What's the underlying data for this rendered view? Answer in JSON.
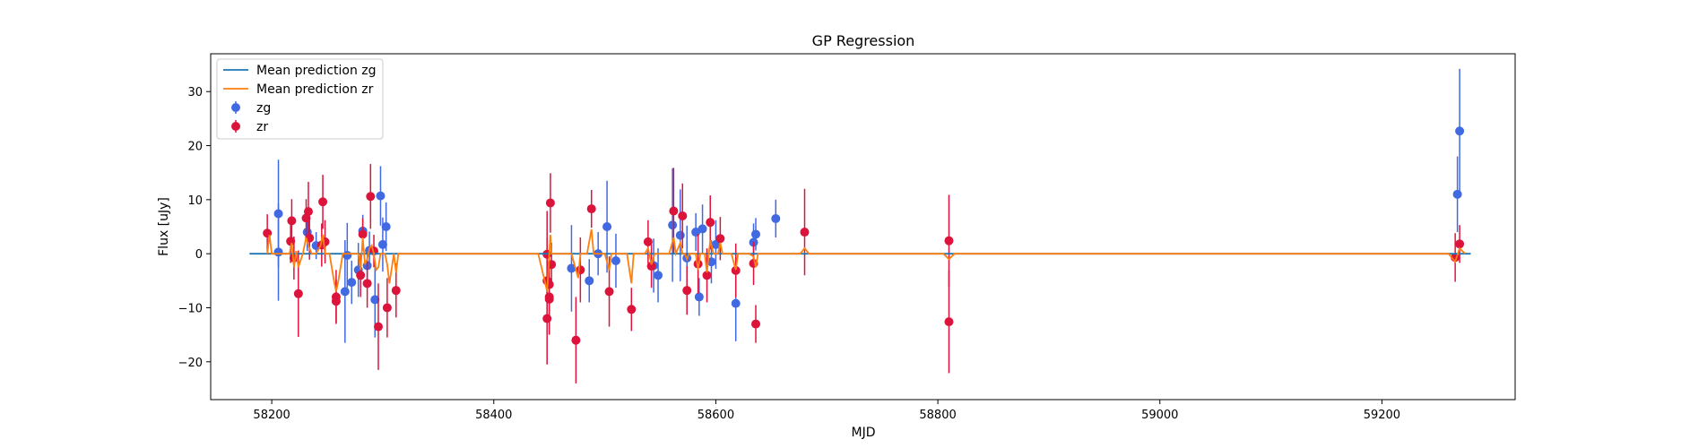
{
  "chart_data": {
    "type": "scatter",
    "title": "GP Regression",
    "xlabel": "MJD",
    "ylabel": "Flux [uJy]",
    "xlim": [
      58145,
      59320
    ],
    "ylim": [
      -27,
      37
    ],
    "xticks": [
      58200,
      58400,
      58600,
      58800,
      59000,
      59200
    ],
    "yticks": [
      -20,
      -10,
      0,
      10,
      20,
      30
    ],
    "xtick_labels": [
      "58200",
      "58400",
      "58600",
      "58800",
      "59000",
      "59200"
    ],
    "ytick_labels": [
      "−20",
      "−10",
      "0",
      "10",
      "20",
      "30"
    ],
    "grid": false,
    "legend_position": "top-left",
    "legend": [
      {
        "label": "Mean prediction zg",
        "kind": "line",
        "color": "#1f77b4"
      },
      {
        "label": "Mean prediction zr",
        "kind": "line",
        "color": "#ff7f0e"
      },
      {
        "label": "zg",
        "kind": "errorbar",
        "color": "#4169e1"
      },
      {
        "label": "zr",
        "kind": "errorbar",
        "color": "#dc143c"
      }
    ],
    "series": [
      {
        "name": "zg",
        "kind": "errorbar",
        "color": "#4169e1",
        "points": [
          [
            58206,
            7.4,
            10.0
          ],
          [
            58206,
            0.3,
            9.0
          ],
          [
            58232,
            4.0,
            3.5
          ],
          [
            58240,
            1.5,
            2.5
          ],
          [
            58266,
            -7.0,
            9.5
          ],
          [
            58268,
            -0.3,
            6.0
          ],
          [
            58272,
            -5.3,
            4.0
          ],
          [
            58278,
            -3.0,
            5.0
          ],
          [
            58282,
            4.2,
            3.0
          ],
          [
            58286,
            -2.2,
            3.5
          ],
          [
            58288,
            0.6,
            3.5
          ],
          [
            58293,
            -8.5,
            7.0
          ],
          [
            58298,
            10.7,
            5.5
          ],
          [
            58300,
            1.7,
            5.0
          ],
          [
            58303,
            5.0,
            4.5
          ],
          [
            58470,
            -2.7,
            8.0
          ],
          [
            58486,
            -5.0,
            4.0
          ],
          [
            58494,
            0.0,
            4.0
          ],
          [
            58502,
            5.0,
            8.5
          ],
          [
            58510,
            -1.3,
            5.0
          ],
          [
            58544,
            -2.2,
            5.0
          ],
          [
            58548,
            -4.0,
            5.0
          ],
          [
            58561,
            5.3,
            10.5
          ],
          [
            58568,
            3.4,
            8.5
          ],
          [
            58574,
            -0.8,
            6.0
          ],
          [
            58582,
            4.0,
            3.5
          ],
          [
            58585,
            -8.0,
            3.5
          ],
          [
            58588,
            4.6,
            4.5
          ],
          [
            58596,
            -1.5,
            4.0
          ],
          [
            58600,
            1.7,
            4.5
          ],
          [
            58618,
            -9.2,
            7.0
          ],
          [
            58634,
            2.1,
            3.5
          ],
          [
            58636,
            3.6,
            3.0
          ],
          [
            58654,
            6.5,
            3.5
          ],
          [
            59268,
            11.0,
            7.0
          ],
          [
            59270,
            22.7,
            11.5
          ]
        ]
      },
      {
        "name": "zr",
        "kind": "errorbar",
        "color": "#dc143c",
        "points": [
          [
            58196,
            3.8,
            3.5
          ],
          [
            58217,
            2.3,
            4.0
          ],
          [
            58218,
            6.1,
            4.0
          ],
          [
            58220,
            -0.8,
            4.0
          ],
          [
            58224,
            -7.4,
            8.0
          ],
          [
            58231,
            6.6,
            3.5
          ],
          [
            58233,
            7.8,
            5.5
          ],
          [
            58234,
            2.9,
            4.0
          ],
          [
            58245,
            1.6,
            4.0
          ],
          [
            58246,
            9.6,
            5.0
          ],
          [
            58248,
            2.2,
            4.0
          ],
          [
            58258,
            -8.0,
            5.0
          ],
          [
            58258,
            -8.8,
            4.0
          ],
          [
            58280,
            -4.0,
            4.0
          ],
          [
            58282,
            3.6,
            3.0
          ],
          [
            58286,
            -5.5,
            4.5
          ],
          [
            58289,
            10.6,
            6.0
          ],
          [
            58292,
            0.5,
            3.0
          ],
          [
            58296,
            -13.5,
            8.0
          ],
          [
            58304,
            -10.0,
            5.5
          ],
          [
            58312,
            -6.8,
            5.0
          ],
          [
            58448,
            -12.0,
            8.5
          ],
          [
            58448,
            -5.0,
            8.0
          ],
          [
            58448,
            -0.1,
            8.0
          ],
          [
            58450,
            -8.0,
            7.0
          ],
          [
            58450,
            -5.7,
            5.5
          ],
          [
            58450,
            -8.4,
            6.5
          ],
          [
            58451,
            9.4,
            5.5
          ],
          [
            58452,
            -2.0,
            4.0
          ],
          [
            58474,
            -16.0,
            8.0
          ],
          [
            58478,
            -3.0,
            6.0
          ],
          [
            58488,
            8.3,
            3.5
          ],
          [
            58504,
            -7.0,
            6.5
          ],
          [
            58524,
            -10.3,
            4.0
          ],
          [
            58539,
            2.2,
            4.0
          ],
          [
            58542,
            -2.3,
            4.0
          ],
          [
            58562,
            7.9,
            8.0
          ],
          [
            58570,
            7.0,
            6.0
          ],
          [
            58574,
            -6.8,
            4.5
          ],
          [
            58584,
            -1.9,
            5.5
          ],
          [
            58592,
            -4.0,
            5.0
          ],
          [
            58595,
            5.8,
            5.0
          ],
          [
            58604,
            2.8,
            4.0
          ],
          [
            58618,
            -3.1,
            5.0
          ],
          [
            58634,
            -1.8,
            4.0
          ],
          [
            58636,
            -13.0,
            3.5
          ],
          [
            58680,
            4.0,
            8.0
          ],
          [
            58810,
            2.4,
            8.5
          ],
          [
            58810,
            -12.6,
            9.5
          ],
          [
            59266,
            -0.7,
            4.5
          ],
          [
            59270,
            1.8,
            3.5
          ]
        ]
      },
      {
        "name": "Mean prediction zg",
        "kind": "line",
        "color": "#1f77b4",
        "x": [
          58180,
          59280
        ],
        "y": [
          0.0,
          0.0
        ]
      },
      {
        "name": "Mean prediction zr",
        "kind": "line",
        "color": "#ff7f0e",
        "x": [
          58196,
          58198,
          58200,
          58216,
          58218,
          58220,
          58222,
          58224,
          58228,
          58231,
          58233,
          58236,
          58240,
          58244,
          58246,
          58248,
          58252,
          58256,
          58258,
          58260,
          58264,
          58278,
          58280,
          58282,
          58284,
          58286,
          58288,
          58290,
          58292,
          58294,
          58296,
          58298,
          58302,
          58304,
          58306,
          58310,
          58312,
          58314,
          58320,
          58440,
          58447,
          58448,
          58449,
          58450,
          58451,
          58452,
          58454,
          58470,
          58474,
          58476,
          58478,
          58480,
          58484,
          58488,
          58490,
          58500,
          58504,
          58506,
          58520,
          58524,
          58526,
          58536,
          58539,
          58542,
          58545,
          58558,
          58562,
          58564,
          58568,
          58570,
          58572,
          58574,
          58576,
          58582,
          58584,
          58586,
          58590,
          58592,
          58595,
          58598,
          58602,
          58604,
          58606,
          58614,
          58618,
          58620,
          58630,
          58634,
          58636,
          58638,
          58676,
          58680,
          58684,
          58805,
          58810,
          58815,
          59260,
          59266,
          59270,
          59275
        ],
        "y": [
          0.0,
          3.5,
          0.0,
          0.0,
          2.0,
          -2.5,
          0.5,
          -2.5,
          0.0,
          3.0,
          1.5,
          0.0,
          0.0,
          1.5,
          3.5,
          0.0,
          0.0,
          -5.0,
          -7.0,
          -5.0,
          0.0,
          0.0,
          -3.0,
          3.0,
          -2.0,
          -1.0,
          1.0,
          1.5,
          0.0,
          -3.0,
          -2.5,
          0.0,
          0.0,
          -2.0,
          -5.5,
          0.0,
          -3.5,
          0.0,
          0.0,
          0.0,
          -6.0,
          -7.0,
          -4.0,
          0.0,
          3.5,
          0.0,
          0.0,
          0.0,
          -3.0,
          -4.5,
          0.0,
          0.0,
          0.0,
          4.5,
          0.0,
          0.0,
          -3.0,
          0.0,
          0.0,
          -5.5,
          0.0,
          0.0,
          1.0,
          -2.0,
          0.0,
          0.0,
          3.0,
          0.0,
          2.0,
          0.0,
          0.0,
          -1.0,
          0.0,
          0.0,
          -3.0,
          0.0,
          0.0,
          -3.5,
          2.5,
          0.0,
          0.0,
          2.0,
          0.0,
          0.0,
          -3.0,
          0.0,
          0.0,
          -0.5,
          -2.5,
          0.0,
          0.0,
          1.0,
          0.0,
          0.0,
          -1.0,
          0.0,
          0.0,
          -1.5,
          1.0,
          0.0
        ]
      }
    ]
  }
}
